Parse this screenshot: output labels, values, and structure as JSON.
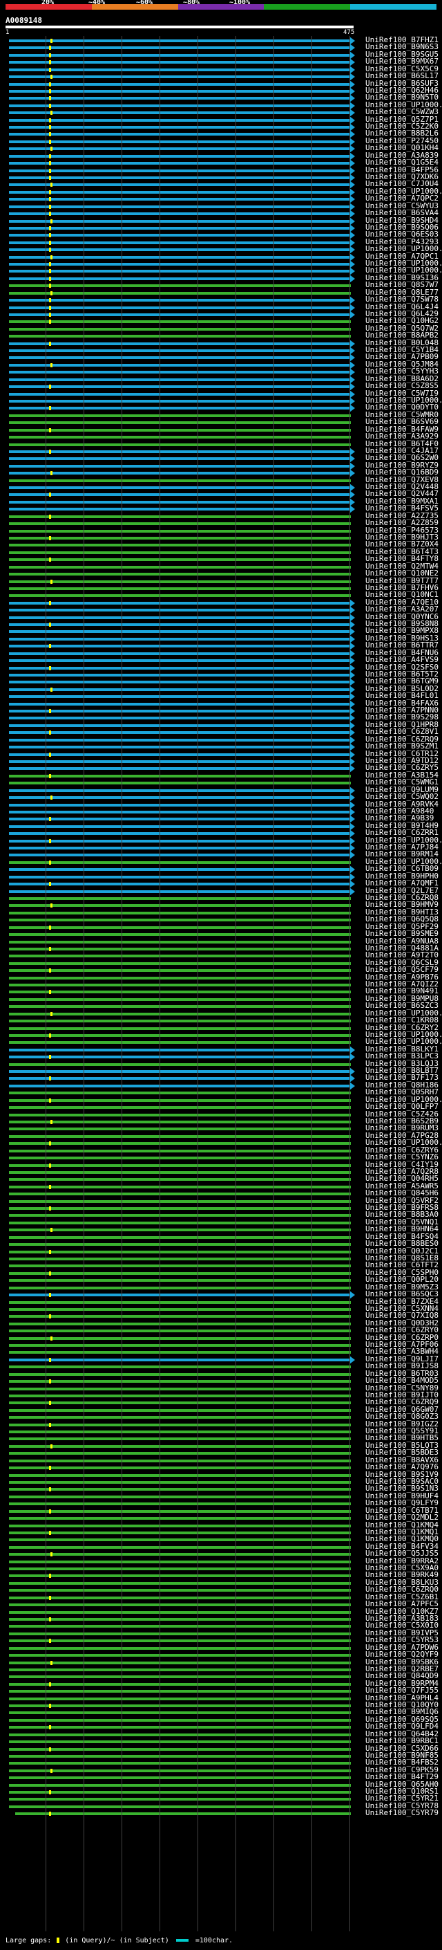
{
  "legend": {
    "segments": [
      {
        "label": "20%",
        "color": "#e1272e"
      },
      {
        "label": "40%",
        "color": "#e87e23"
      },
      {
        "label": "60%",
        "color": "#7a2cab"
      },
      {
        "label": "80%",
        "color": "#189f1e"
      },
      {
        "label": "100%",
        "color": "#16b3d6"
      }
    ],
    "tick_labels": [
      "20%",
      "~40%",
      "~60%",
      "~80%",
      "~100%"
    ]
  },
  "query": {
    "id": "A0089148",
    "start": "1",
    "end": "475"
  },
  "colors": {
    "blue": "#1ba5db",
    "green": "#3ab32f",
    "yellow": "#ffff33"
  },
  "hits": [
    "UniRef100_B7FHZ1",
    "UniRef100_B9N6S3",
    "UniRef100_B9SGU5",
    "UniRef100_B9MX67",
    "UniRef100_C5X5C9",
    "UniRef100_B6SL17",
    "UniRef100_B6SUF3",
    "UniRef100_Q62H46",
    "UniRef100_B9N5T0",
    "UniRef100_UP1000...",
    "UniRef100_C5WZW3",
    "UniRef100_Q5Z7P1",
    "UniRef100_C5Z2K0",
    "UniRef100_B8B2L6",
    "UniRef100_P27450",
    "UniRef100_Q01KH4",
    "UniRef100_A3A839",
    "UniRef100_Q1G5E4",
    "UniRef100_B4FP56",
    "UniRef100_Q7XDK6",
    "UniRef100_C7J0U4",
    "UniRef100_UP1000...",
    "UniRef100_A7QPC2",
    "UniRef100_C5WYU3",
    "UniRef100_B6SVA4",
    "UniRef100_B9SHD4",
    "UniRef100_B9SQ06",
    "UniRef100_Q6ES03",
    "UniRef100_P43293",
    "UniRef100_UP1000...",
    "UniRef100_A7QPC1",
    "UniRef100_UP1000...",
    "UniRef100_UP1000...",
    "UniRef100_B9SI36",
    "UniRef100_Q8S7W7",
    "UniRef100_Q8LE77",
    "UniRef100_Q7SW78",
    "UniRef100_Q6L4J4",
    "UniRef100_Q6L429",
    "UniRef100_Q10HG2",
    "UniRef100_Q5Q7W2",
    "UniRef100_B8APB2",
    "UniRef100_B0L048",
    "UniRef100_C5Y1B4",
    "UniRef100_A7PB09",
    "UniRef100_Q5JM84",
    "UniRef100_C5YYH3",
    "UniRef100_B8A6D2",
    "UniRef100_C5Z8S5",
    "UniRef100_C5W7I9",
    "UniRef100_UP1000...",
    "UniRef100_Q0DYT0",
    "UniRef100_C5WMR0",
    "UniRef100_B6SV69",
    "UniRef100_B4FAW9",
    "UniRef100_A3A929",
    "UniRef100_B6T4F0",
    "UniRef100_C4JA17",
    "UniRef100_Q6S2W0",
    "UniRef100_B9RYZ9",
    "UniRef100_Q16BD9",
    "UniRef100_Q7XEV8",
    "UniRef100_Q2V448",
    "UniRef100_Q2V447",
    "UniRef100_B9MXA1",
    "UniRef100_B4FSV5",
    "UniRef100_A2Z735",
    "UniRef100_A2Z859",
    "UniRef100_P46573",
    "UniRef100_B9HJT3",
    "UniRef100_B7Z0X4",
    "UniRef100_B6T4T3",
    "UniRef100_B4FTY8",
    "UniRef100_Q2MTW4",
    "UniRef100_Q10NE2",
    "UniRef100_B9T7T7",
    "UniRef100_B7FHV6",
    "UniRef100_Q10NC1",
    "UniRef100_A7QE10",
    "UniRef100_A3A207",
    "UniRef100_Q0YNC6",
    "UniRef100_B9S8N8",
    "UniRef100_B9MPX8",
    "UniRef100_B9HS13",
    "UniRef100_B6TTR7",
    "UniRef100_B4FNU6",
    "UniRef100_A4FVS9",
    "UniRef100_Q2SFS0",
    "UniRef100_B6T5T2",
    "UniRef100_B6TGM9",
    "UniRef100_B5L0D2",
    "UniRef100_B4FL01",
    "UniRef100_B4FAX6",
    "UniRef100_A7PNN0",
    "UniRef100_B9S298",
    "UniRef100_Q1HPR8",
    "UniRef100_C6Z8V1",
    "UniRef100_C6ZRQ9",
    "UniRef100_B9SZM1",
    "UniRef100_C6TR12",
    "UniRef100_A9TD12",
    "UniRef100_C6ZRY5",
    "UniRef100_A3B154",
    "UniRef100_C5WMG1",
    "UniRef100_Q9LUM9",
    "UniRef100_C5WQ02",
    "UniRef100_A9RVK4",
    "UniRef100_A9840",
    "UniRef100_A9B39",
    "UniRef100_B9T4H9",
    "UniRef100_C6ZRR1",
    "UniRef100_UP1000...",
    "UniRef100_A7PJ84",
    "UniRef100_B9RM14",
    "UniRef100_UP1000...",
    "UniRef100_C6TB09",
    "UniRef100_B9HPH0",
    "UniRef100_A7QMF1",
    "UniRef100_Q2L7E7",
    "UniRef100_C6ZRQ8",
    "UniRef100_B9HMV9",
    "UniRef100_B9HTI3",
    "UniRef100_Q6Q5Q8",
    "UniRef100_Q5PF29",
    "UniRef100_B9SME9",
    "UniRef100_A9NUA8",
    "UniRef100_Q4881A",
    "UniRef100_A9T2T0",
    "UniRef100_Q6CSL9",
    "UniRef100_Q5CF79",
    "UniRef100_A9PB76",
    "UniRef100_A7QIZ2",
    "UniRef100_B9N491",
    "UniRef100_B9MPU8",
    "UniRef100_B6SZC3",
    "UniRef100_UP1000...",
    "UniRef100_C1KR08",
    "UniRef100_C6ZRY2",
    "UniRef100_UP1000...",
    "UniRef100_UP1000...",
    "UniRef100_B8LKY1",
    "UniRef100_B3LPC3",
    "UniRef100_B3LQJ3",
    "UniRef100_B8LBT7",
    "UniRef100_B7F173",
    "UniRef100_Q8H186",
    "UniRef100_Q0SRH7",
    "UniRef100_UP1000...",
    "UniRef100_Q0LFP7",
    "UniRef100_C5Z426",
    "UniRef100_B6S2B9",
    "UniRef100_B9RUM3",
    "UniRef100_A7PG28",
    "UniRef100_UP1000...",
    "UniRef100_C6ZRY6",
    "UniRef100_C5YNZ6",
    "UniRef100_C4IY19",
    "UniRef100_A7Q2R8",
    "UniRef100_Q04RH5",
    "UniRef100_A5AWR5",
    "UniRef100_Q845H6",
    "UniRef100_Q5VRF2",
    "UniRef100_B9FRS8",
    "UniRef100_B8B3A0",
    "UniRef100_Q5VNQ1",
    "UniRef100_B9HN64",
    "UniRef100_B4FSQ4",
    "UniRef100_B8BES0",
    "UniRef100_Q0J2C1",
    "UniRef100_Q8S1E8",
    "UniRef100_C6TFT2",
    "UniRef100_C5SPH0",
    "UniRef100_Q0PL20",
    "UniRef100_B9M5Z3",
    "UniRef100_B6SQC3",
    "UniRef100_B7ZXE4",
    "UniRef100_C5XNN4",
    "UniRef100_Q7XIQ8",
    "UniRef100_Q0D3H2",
    "UniRef100_C6ZRY0",
    "UniRef100_C6ZRP0",
    "UniRef100_A7PF06",
    "UniRef100_A3BWH4",
    "UniRef100_Q9LJI7",
    "UniRef100_B9IJS8",
    "UniRef100_B6TR03",
    "UniRef100_B4MOD5",
    "UniRef100_C5NY89",
    "UniRef100_B9IJT0",
    "UniRef100_C6ZRQ9",
    "UniRef100_Q6GW07",
    "UniRef100_Q8G0Z3",
    "UniRef100_B9IGZ2",
    "UniRef100_Q5SY91",
    "UniRef100_B9HTB5",
    "UniRef100_B5LQT3",
    "UniRef100_B5BDE3",
    "UniRef100_B8AVX6",
    "UniRef100_A7Q976",
    "UniRef100_B9S1V9",
    "UniRef100_B9SAC0",
    "UniRef100_B9S1N3",
    "UniRef100_B9HUF4",
    "UniRef100_Q9LFY9",
    "UniRef100_C6TB71",
    "UniRef100_Q2MDL2",
    "UniRef100_Q1KMQ4",
    "UniRef100_Q1KMQ1",
    "UniRef100_Q1KMQ0",
    "UniRef100_B4FV34",
    "UniRef100_Q5JJS5",
    "UniRef100_B9RRA2",
    "UniRef100_C5X9A0",
    "UniRef100_B9RK49",
    "UniRef100_B8LKU3",
    "UniRef100_C6ZRQ0",
    "UniRef100_C5Z6B1",
    "UniRef100_A7PFC5",
    "UniRef100_Q10KZ7",
    "UniRef100_A3B183",
    "UniRef100_C5X0I0",
    "UniRef100_B9IVP5",
    "UniRef100_C5YR53",
    "UniRef100_A7PDW6",
    "UniRef100_Q2QYF9",
    "UniRef100_B9SBK6",
    "UniRef100_Q2RBE7",
    "UniRef100_Q84QD9",
    "UniRef100_B9RPM4",
    "UniRef100_Q7FJ55",
    "UniRef100_A9PHL4",
    "UniRef100_Q10QY0",
    "UniRef100_B9MIQ6",
    "UniRef100_Q69SQ5",
    "UniRef100_Q9LFD4",
    "UniRef100_Q64B42",
    "UniRef100_B9RBC1",
    "UniRef100_C5XD66",
    "UniRef100_B9NF85",
    "UniRef100_B4FBS2",
    "UniRef100_C9PK59",
    "UniRef100_B4FT29",
    "UniRef100_Q65AH0",
    "UniRef100_Q10RS1",
    "UniRef100_C5YR21",
    "UniRef100_C5YR78",
    "UniRef100_C5YR79"
  ],
  "footer": {
    "large_gaps": "Large gaps:",
    "in_query": "(in Query)/~ (in Subject)",
    "scale": "=100char."
  }
}
